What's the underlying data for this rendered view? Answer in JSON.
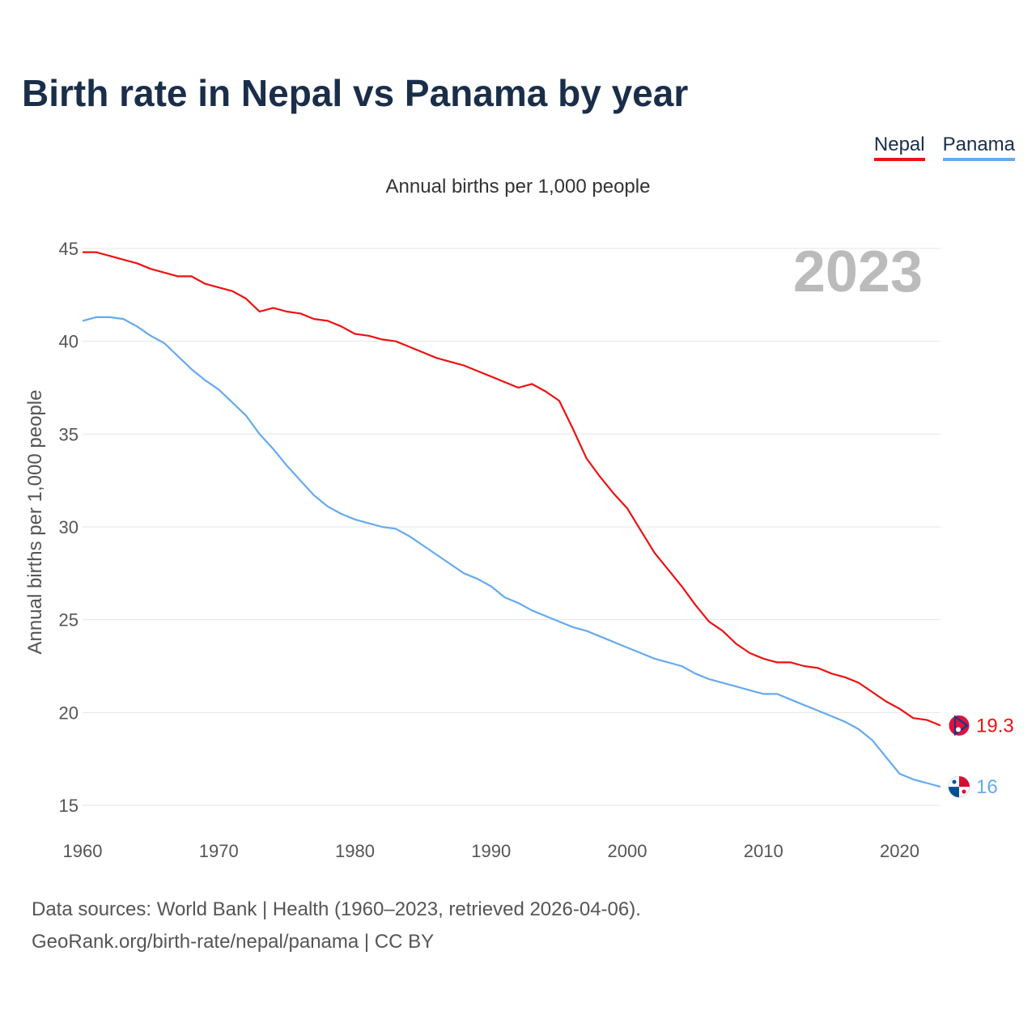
{
  "title": "Birth rate in Nepal vs Panama by year",
  "legend": [
    {
      "name": "Nepal",
      "color": "#ee1111"
    },
    {
      "name": "Panama",
      "color": "#66aaee"
    }
  ],
  "subtitle": "Annual births per 1,000 people",
  "footer": {
    "line1": "Data sources: World Bank | Health (1960–2023, retrieved 2026-04-06).",
    "line2": "GeoRank.org/birth-rate/nepal/panama | CC BY"
  },
  "chart_data": {
    "type": "line",
    "title": "Birth rate in Nepal vs Panama by year",
    "xlabel": "",
    "ylabel": "Annual births per 1,000 people",
    "year_label": "2023",
    "xlim": [
      1960,
      2023
    ],
    "ylim": [
      13.5,
      46
    ],
    "xticks": [
      1960,
      1970,
      1980,
      1990,
      2000,
      2010,
      2020
    ],
    "yticks": [
      15,
      20,
      25,
      30,
      35,
      40,
      45
    ],
    "grid": true,
    "x": [
      1960,
      1961,
      1962,
      1963,
      1964,
      1965,
      1966,
      1967,
      1968,
      1969,
      1970,
      1971,
      1972,
      1973,
      1974,
      1975,
      1976,
      1977,
      1978,
      1979,
      1980,
      1981,
      1982,
      1983,
      1984,
      1985,
      1986,
      1987,
      1988,
      1989,
      1990,
      1991,
      1992,
      1993,
      1994,
      1995,
      1996,
      1997,
      1998,
      1999,
      2000,
      2001,
      2002,
      2003,
      2004,
      2005,
      2006,
      2007,
      2008,
      2009,
      2010,
      2011,
      2012,
      2013,
      2014,
      2015,
      2016,
      2017,
      2018,
      2019,
      2020,
      2021,
      2022,
      2023
    ],
    "series": [
      {
        "name": "Nepal",
        "color": "#ee1111",
        "end_label": "19.3",
        "values": [
          44.8,
          44.8,
          44.6,
          44.4,
          44.2,
          43.9,
          43.7,
          43.5,
          43.5,
          43.1,
          42.9,
          42.7,
          42.3,
          41.6,
          41.8,
          41.6,
          41.5,
          41.2,
          41.1,
          40.8,
          40.4,
          40.3,
          40.1,
          40.0,
          39.7,
          39.4,
          39.1,
          38.9,
          38.7,
          38.4,
          38.1,
          37.8,
          37.5,
          37.7,
          37.3,
          36.8,
          35.3,
          33.7,
          32.7,
          31.8,
          31.0,
          29.8,
          28.6,
          27.7,
          26.8,
          25.8,
          24.9,
          24.4,
          23.7,
          23.2,
          22.9,
          22.7,
          22.7,
          22.5,
          22.4,
          22.1,
          21.9,
          21.6,
          21.1,
          20.6,
          20.2,
          19.7,
          19.6,
          19.3
        ]
      },
      {
        "name": "Panama",
        "color": "#66aaee",
        "end_label": "16",
        "values": [
          41.1,
          41.3,
          41.3,
          41.2,
          40.8,
          40.3,
          39.9,
          39.2,
          38.5,
          37.9,
          37.4,
          36.7,
          36.0,
          35.0,
          34.2,
          33.3,
          32.5,
          31.7,
          31.1,
          30.7,
          30.4,
          30.2,
          30.0,
          29.9,
          29.5,
          29.0,
          28.5,
          28.0,
          27.5,
          27.2,
          26.8,
          26.2,
          25.9,
          25.5,
          25.2,
          24.9,
          24.6,
          24.4,
          24.1,
          23.8,
          23.5,
          23.2,
          22.9,
          22.7,
          22.5,
          22.1,
          21.8,
          21.6,
          21.4,
          21.2,
          21.0,
          21.0,
          20.7,
          20.4,
          20.1,
          19.8,
          19.5,
          19.1,
          18.5,
          17.6,
          16.7,
          16.4,
          16.2,
          16.0
        ]
      }
    ]
  }
}
